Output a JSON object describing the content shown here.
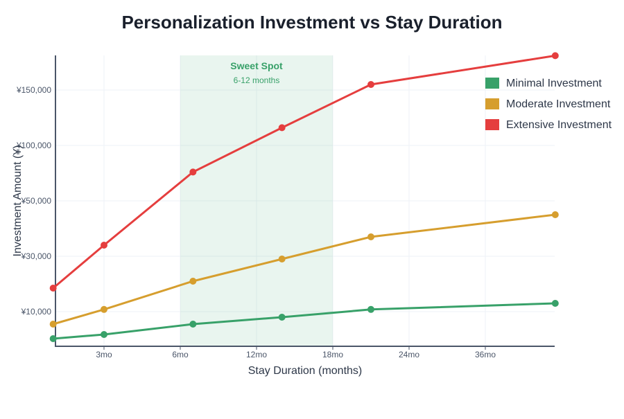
{
  "chart_data": {
    "type": "line",
    "title": "Personalization Investment vs Stay Duration",
    "xlabel": "Stay Duration (months)",
    "ylabel": "Investment Amount (¥)",
    "x_ticks": [
      {
        "value": 3,
        "label": "3mo"
      },
      {
        "value": 6,
        "label": "6mo"
      },
      {
        "value": 12,
        "label": "12mo"
      },
      {
        "value": 18,
        "label": "18mo"
      },
      {
        "value": 24,
        "label": "24mo"
      },
      {
        "value": 36,
        "label": "36mo"
      }
    ],
    "y_ticks": [
      {
        "value": 10000,
        "label": "¥10,000"
      },
      {
        "value": 30000,
        "label": "¥30,000"
      },
      {
        "value": 50000,
        "label": "¥50,000"
      },
      {
        "value": 100000,
        "label": "¥100,000"
      },
      {
        "value": 150000,
        "label": "¥150,000"
      }
    ],
    "x": [
      1,
      3,
      7,
      14,
      21,
      47
    ],
    "series": [
      {
        "name": "Minimal Investment",
        "color": "#38a169",
        "values": [
          2200,
          3400,
          6400,
          8400,
          10800,
          13000
        ]
      },
      {
        "name": "Moderate Investment",
        "color": "#d69e2e",
        "values": [
          6400,
          10800,
          21000,
          29000,
          37000,
          45000
        ]
      },
      {
        "name": "Extensive Investment",
        "color": "#e53e3e",
        "values": [
          18500,
          34000,
          76000,
          116000,
          155000,
          181000
        ]
      }
    ],
    "annotation": {
      "title": "Sweet Spot",
      "subtitle": "6-12 months",
      "x_range": [
        6,
        18
      ],
      "color": "#38a169"
    },
    "grid": true,
    "legend_position": "top-right"
  }
}
